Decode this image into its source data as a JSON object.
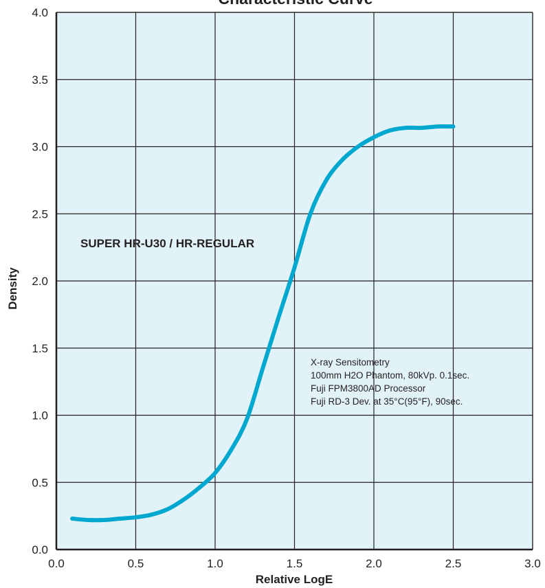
{
  "chart_data": {
    "type": "line",
    "title": "Characteristic Curve",
    "xlabel": "Relative LogE",
    "ylabel": "Density",
    "xlim": [
      0,
      3
    ],
    "ylim": [
      0,
      4
    ],
    "grid": true,
    "x_ticks": [
      "0.0",
      "0.5",
      "1.0",
      "1.5",
      "2.0",
      "2.5",
      "3.0"
    ],
    "y_ticks": [
      "0.0",
      "0.5",
      "1.0",
      "1.5",
      "2.0",
      "2.5",
      "3.0",
      "3.5",
      "4.0"
    ],
    "series": [
      {
        "name": "SUPER HR-U30 / HR-REGULAR",
        "x": [
          0.1,
          0.2,
          0.3,
          0.4,
          0.5,
          0.6,
          0.7,
          0.8,
          0.9,
          1.0,
          1.1,
          1.2,
          1.3,
          1.4,
          1.5,
          1.6,
          1.7,
          1.8,
          1.9,
          2.0,
          2.1,
          2.2,
          2.3,
          2.4,
          2.5
        ],
        "y": [
          0.23,
          0.22,
          0.22,
          0.23,
          0.24,
          0.26,
          0.3,
          0.37,
          0.46,
          0.57,
          0.74,
          0.97,
          1.35,
          1.73,
          2.1,
          2.5,
          2.75,
          2.9,
          3.0,
          3.07,
          3.12,
          3.14,
          3.14,
          3.15,
          3.15
        ]
      }
    ],
    "annotation": {
      "lines": [
        "X-ray Sensitometry",
        "100mm H2O Phantom, 80kVp. 0.1sec.",
        "Fuji FPM3800AD Processor",
        "Fuji RD-3 Dev. at 35°C(95°F), 90sec."
      ]
    }
  },
  "colors": {
    "plot_background": "#e1f2f8",
    "grid": "#231f20",
    "curve": "#00a7cf",
    "text": "#231f20"
  }
}
